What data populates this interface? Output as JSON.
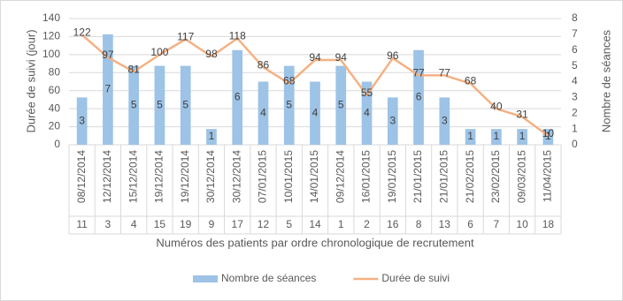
{
  "chart_data": {
    "type": "combo",
    "x_label": "Numéros des patients par ordre chronologique de recrutement",
    "y_label": "Durée de suivi (jour)",
    "y2_label": "Nombre de séances",
    "categories": [
      "08/12/2014",
      "12/12/2014",
      "15/12/2014",
      "19/12/2014",
      "19/12/2014",
      "30/12/2014",
      "30/12/2014",
      "07/01/2015",
      "10/01/2015",
      "14/01/2015",
      "09/12/2014",
      "16/01/2015",
      "19/01/2015",
      "21/01/2015",
      "21/01/2015",
      "21/02/2015",
      "23/02/2015",
      "09/03/2015",
      "11/04/2015"
    ],
    "categories2": [
      "11",
      "3",
      "4",
      "15",
      "19",
      "9",
      "17",
      "12",
      "5",
      "14",
      "1",
      "2",
      "16",
      "8",
      "13",
      "6",
      "7",
      "10",
      "18"
    ],
    "series": [
      {
        "name": "Nombre de séances",
        "type": "bar",
        "axis": "y2",
        "color": "#9dc3e6",
        "values": [
          3,
          7,
          5,
          5,
          5,
          1,
          6,
          4,
          5,
          4,
          5,
          4,
          3,
          6,
          3,
          1,
          1,
          1,
          1
        ]
      },
      {
        "name": "Durée de suivi",
        "type": "line",
        "color": "#f4b183",
        "values": [
          122,
          97,
          81,
          100,
          117,
          98,
          118,
          86,
          68,
          94,
          94,
          55,
          96,
          77,
          77,
          68,
          40,
          31,
          10
        ]
      }
    ],
    "ylim": [
      0,
      140
    ],
    "yticks": [
      0,
      20,
      40,
      60,
      80,
      100,
      120,
      140
    ],
    "y2lim": [
      0,
      8
    ],
    "y2ticks": [
      0,
      1,
      2,
      3,
      4,
      5,
      6,
      7,
      8
    ],
    "grid": true,
    "legend": "bottom"
  }
}
